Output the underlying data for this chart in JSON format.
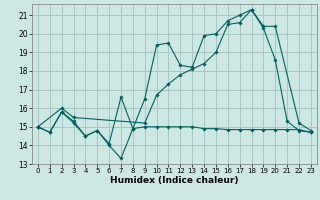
{
  "xlabel": "Humidex (Indice chaleur)",
  "bg_color": "#cde8e4",
  "grid_color": "#a8c8c4",
  "line_color": "#006060",
  "xlim": [
    -0.5,
    23.5
  ],
  "ylim": [
    13,
    21.6
  ],
  "yticks": [
    13,
    14,
    15,
    16,
    17,
    18,
    19,
    20,
    21
  ],
  "xticks": [
    0,
    1,
    2,
    3,
    4,
    5,
    6,
    7,
    8,
    9,
    10,
    11,
    12,
    13,
    14,
    15,
    16,
    17,
    18,
    19,
    20,
    21,
    22,
    23
  ],
  "line1_x": [
    0,
    1,
    2,
    3,
    4,
    5,
    6,
    7,
    8,
    9,
    10,
    11,
    12,
    13,
    14,
    15,
    16,
    17,
    18,
    19,
    20,
    21,
    22,
    23
  ],
  "line1_y": [
    15.0,
    14.7,
    15.8,
    15.2,
    14.5,
    14.8,
    14.0,
    13.3,
    14.9,
    15.0,
    15.0,
    15.0,
    15.0,
    15.0,
    14.9,
    14.9,
    14.85,
    14.85,
    14.85,
    14.85,
    14.85,
    14.85,
    14.85,
    14.7
  ],
  "line2_x": [
    0,
    1,
    2,
    3,
    4,
    5,
    6,
    7,
    8,
    9,
    10,
    11,
    12,
    13,
    14,
    15,
    16,
    17,
    18,
    19,
    20,
    21,
    22,
    23
  ],
  "line2_y": [
    15.0,
    14.7,
    15.8,
    15.3,
    14.5,
    14.8,
    14.1,
    16.6,
    14.9,
    16.5,
    19.4,
    19.5,
    18.3,
    18.2,
    19.9,
    20.0,
    20.7,
    21.0,
    21.3,
    20.3,
    18.6,
    15.3,
    14.8,
    14.7
  ],
  "line3_x": [
    0,
    2,
    3,
    9,
    10,
    11,
    12,
    13,
    14,
    15,
    16,
    17,
    18,
    19,
    20,
    22,
    23
  ],
  "line3_y": [
    15.0,
    16.0,
    15.5,
    15.2,
    16.7,
    17.3,
    17.8,
    18.1,
    18.4,
    19.0,
    20.5,
    20.6,
    21.3,
    20.4,
    20.4,
    15.2,
    14.8
  ]
}
